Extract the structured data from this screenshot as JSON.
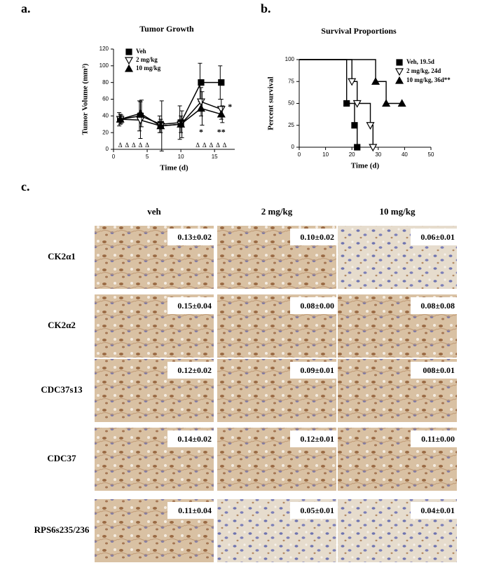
{
  "chart_data": [
    {
      "type": "line",
      "panel": "a.",
      "title": "Tumor Growth",
      "x_label": "Time (d)",
      "y_label": "Tumor Volume (mm³)",
      "xlim": [
        0,
        18
      ],
      "xticks": [
        0,
        5,
        10,
        15
      ],
      "ylim": [
        0,
        120
      ],
      "yticks": [
        0,
        20,
        40,
        60,
        80,
        100,
        120
      ],
      "x": [
        1,
        4,
        7,
        10,
        13,
        16
      ],
      "series": [
        {
          "name": "Veh",
          "color": "#000000",
          "marker": "square",
          "values": [
            36,
            40,
            30,
            32,
            80,
            80
          ],
          "errors": [
            8,
            18,
            10,
            20,
            23,
            20
          ]
        },
        {
          "name": "2 mg/kg",
          "color": "#000000",
          "marker": "triangle-down-open",
          "values": [
            36,
            35,
            28,
            30,
            57,
            48
          ],
          "errors": [
            6,
            22,
            8,
            10,
            17,
            12
          ]
        },
        {
          "name": "10 mg/kg",
          "color": "#000000",
          "marker": "triangle-up",
          "values": [
            36,
            43,
            28,
            30,
            49,
            42
          ],
          "errors": [
            5,
            16,
            30,
            16,
            20,
            10
          ]
        }
      ],
      "annotations": [
        "*",
        "*",
        "**"
      ],
      "treatment_marker": "Δ",
      "treatment_days": [
        1,
        2,
        3,
        4,
        5,
        12.5,
        13.5,
        14.5,
        15.5,
        16.5
      ]
    },
    {
      "type": "step",
      "panel": "b.",
      "title": "Survival Proportions",
      "x_label": "Time (d)",
      "y_label": "Percent survival",
      "xlim": [
        0,
        50
      ],
      "xticks": [
        0,
        10,
        20,
        30,
        40,
        50
      ],
      "ylim": [
        0,
        100
      ],
      "yticks": [
        0,
        25,
        50,
        75,
        100
      ],
      "series": [
        {
          "name": "Veh, 19.5d",
          "color": "#000000",
          "marker": "square",
          "x": [
            0,
            18,
            21,
            22
          ],
          "values": [
            100,
            50,
            25,
            0
          ]
        },
        {
          "name": "2 mg/kg, 24d",
          "color": "#000000",
          "marker": "triangle-down-open",
          "x": [
            0,
            20,
            22,
            27,
            28
          ],
          "values": [
            100,
            75,
            50,
            25,
            0
          ]
        },
        {
          "name": "10 mg/kg, 36d**",
          "color": "#000000",
          "marker": "triangle-up",
          "x": [
            0,
            29,
            33,
            39
          ],
          "values": [
            100,
            75,
            50,
            50
          ]
        }
      ]
    }
  ],
  "ihc": {
    "panel": "c.",
    "columns": [
      "veh",
      "2 mg/kg",
      "10 mg/kg"
    ],
    "rows": [
      {
        "label": "CK2α1",
        "cells": [
          "0.13±0.02",
          "0.10±0.02",
          "0.06±0.01"
        ]
      },
      {
        "label": "CK2α2",
        "cells": [
          "0.15±0.04",
          "0.08±0.00",
          "0.08±0.08"
        ]
      },
      {
        "label": "CDC37s13",
        "cells": [
          "0.12±0.02",
          "0.09±0.01",
          "008±0.01"
        ]
      },
      {
        "label": "CDC37",
        "cells": [
          "0.14±0.02",
          "0.12±0.01",
          "0.11±0.00"
        ]
      },
      {
        "label": "RPS6s235/236",
        "cells": [
          "0.11±0.04",
          "0.05±0.01",
          "0.04±0.01"
        ]
      }
    ]
  }
}
